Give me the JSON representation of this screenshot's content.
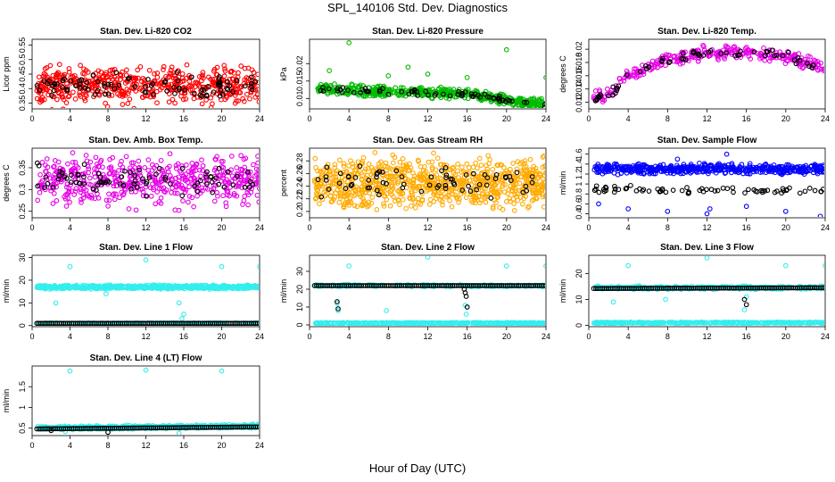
{
  "figure": {
    "title": "SPL_140106  Std. Dev. Diagnostics",
    "xlabel": "Hour of Day (UTC)"
  },
  "chart_data": [
    {
      "type": "scatter",
      "title": "Stan. Dev. Li-820 CO2",
      "ylabel": "Licor ppm",
      "xticks": [
        0,
        4,
        8,
        12,
        16,
        20,
        24
      ],
      "xlim": [
        0,
        24
      ],
      "yticks": [
        0.35,
        0.4,
        0.45,
        0.5,
        0.55
      ],
      "ylim": [
        0.33,
        0.57
      ],
      "series": [
        {
          "color": "#ff0000",
          "pattern": {
            "type": "noisy",
            "base": 0.41,
            "spread": 0.075,
            "n": 520,
            "seed": 11
          }
        },
        {
          "color": "#000000",
          "pattern": {
            "type": "noisy",
            "base": 0.41,
            "spread": 0.05,
            "n": 90,
            "seed": 12
          }
        }
      ]
    },
    {
      "type": "scatter",
      "title": "Stan. Dev. Li-820 Pressure",
      "ylabel": "kPa",
      "xticks": [
        0,
        4,
        8,
        12,
        16,
        20,
        24
      ],
      "xlim": [
        0,
        24
      ],
      "yticks": [
        0.01,
        0.015,
        0.02
      ],
      "ylim": [
        0.007,
        0.027
      ],
      "series": [
        {
          "color": "#00bb00",
          "pattern": {
            "type": "band",
            "levels": [
              [
                0,
                0.013
              ],
              [
                8,
                0.012
              ],
              [
                16,
                0.0115
              ],
              [
                20,
                0.0095
              ],
              [
                24,
                0.008
              ]
            ],
            "spread": 0.0018,
            "n": 500,
            "seed": 21
          }
        },
        {
          "color": "#00bb00",
          "pattern": {
            "type": "points",
            "x": [
              4,
              8,
              12,
              16,
              20,
              24,
              2,
              10
            ],
            "y": [
              0.026,
              0.0165,
              0.017,
              0.016,
              0.024,
              0.016,
              0.018,
              0.019
            ]
          }
        },
        {
          "color": "#000000",
          "pattern": {
            "type": "band",
            "levels": [
              [
                0,
                0.013
              ],
              [
                8,
                0.012
              ],
              [
                16,
                0.0112
              ],
              [
                20,
                0.0095
              ],
              [
                24,
                0.008
              ]
            ],
            "spread": 0.001,
            "n": 70,
            "seed": 22
          }
        }
      ]
    },
    {
      "type": "scatter",
      "title": "Stan. Dev. Li-820 Temp.",
      "ylabel": "degrees C",
      "xticks": [
        0,
        4,
        8,
        12,
        16,
        20,
        24
      ],
      "xlim": [
        0,
        24
      ],
      "yticks": [
        0.012,
        0.014,
        0.016,
        0.018,
        0.02
      ],
      "ylim": [
        0.011,
        0.0215
      ],
      "series": [
        {
          "color": "#e600e6",
          "pattern": {
            "type": "band",
            "levels": [
              [
                0,
                0.0128
              ],
              [
                2,
                0.013
              ],
              [
                4,
                0.016
              ],
              [
                8,
                0.0185
              ],
              [
                12,
                0.0195
              ],
              [
                16,
                0.0195
              ],
              [
                20,
                0.019
              ],
              [
                24,
                0.017
              ]
            ],
            "spread": 0.0012,
            "n": 300,
            "seed": 31
          }
        },
        {
          "color": "#000000",
          "pattern": {
            "type": "band",
            "levels": [
              [
                0,
                0.0128
              ],
              [
                2,
                0.013
              ],
              [
                4,
                0.016
              ],
              [
                8,
                0.0185
              ],
              [
                12,
                0.0195
              ],
              [
                16,
                0.0195
              ],
              [
                20,
                0.019
              ],
              [
                24,
                0.017
              ]
            ],
            "spread": 0.0008,
            "n": 60,
            "seed": 32
          }
        }
      ]
    },
    {
      "type": "scatter",
      "title": "Stan. Dev. Amb. Box Temp.",
      "ylabel": "degrees C",
      "xticks": [
        0,
        4,
        8,
        12,
        16,
        20,
        24
      ],
      "xlim": [
        0,
        24
      ],
      "yticks": [
        0.25,
        0.3,
        0.35
      ],
      "ylim": [
        0.235,
        0.395
      ],
      "series": [
        {
          "color": "#e600e6",
          "pattern": {
            "type": "noisy",
            "base": 0.32,
            "spread": 0.065,
            "n": 500,
            "seed": 41
          }
        },
        {
          "color": "#000000",
          "pattern": {
            "type": "noisy",
            "base": 0.32,
            "spread": 0.045,
            "n": 80,
            "seed": 42
          }
        }
      ]
    },
    {
      "type": "scatter",
      "title": "Stan. Dev. Gas Stream RH",
      "ylabel": "percent",
      "xticks": [
        0,
        4,
        8,
        12,
        16,
        20,
        24
      ],
      "xlim": [
        0,
        24
      ],
      "yticks": [
        0.2,
        0.22,
        0.24,
        0.26,
        0.28
      ],
      "ylim": [
        0.19,
        0.3
      ],
      "series": [
        {
          "color": "#ffaa00",
          "pattern": {
            "type": "noisy",
            "base": 0.245,
            "spread": 0.045,
            "n": 800,
            "seed": 51
          }
        },
        {
          "color": "#000000",
          "pattern": {
            "type": "noisy",
            "base": 0.245,
            "spread": 0.03,
            "n": 70,
            "seed": 52
          }
        }
      ]
    },
    {
      "type": "scatter",
      "title": "Stan. Dev. Sample Flow",
      "ylabel": "ml/min",
      "xticks": [
        0,
        4,
        8,
        12,
        16,
        20,
        24
      ],
      "xlim": [
        0,
        24
      ],
      "yticks": [
        0.4,
        0.6,
        0.8,
        1,
        1.2,
        1.4,
        1.6
      ],
      "ylim": [
        0.32,
        1.72
      ],
      "series": [
        {
          "color": "#0000ff",
          "pattern": {
            "type": "band",
            "levels": [
              [
                0,
                1.3
              ],
              [
                24,
                1.3
              ]
            ],
            "spread": 0.12,
            "n": 500,
            "seed": 61
          }
        },
        {
          "color": "#0000ff",
          "pattern": {
            "type": "points",
            "x": [
              1,
              4,
              8,
              12,
              12.3,
              16,
              20,
              23.5,
              9,
              14
            ],
            "y": [
              0.6,
              0.5,
              0.45,
              0.4,
              0.5,
              0.55,
              0.45,
              0.35,
              1.5,
              1.6
            ]
          }
        },
        {
          "color": "#000000",
          "pattern": {
            "type": "band",
            "levels": [
              [
                0,
                0.9
              ],
              [
                24,
                0.85
              ]
            ],
            "spread": 0.08,
            "n": 70,
            "seed": 62
          }
        }
      ]
    },
    {
      "type": "scatter",
      "title": "Stan. Dev. Line 1 Flow",
      "ylabel": "ml/min",
      "xticks": [
        0,
        4,
        8,
        12,
        16,
        20,
        24
      ],
      "xlim": [
        0,
        24
      ],
      "yticks": [
        0,
        10,
        20,
        30
      ],
      "ylim": [
        -0.5,
        31
      ],
      "series": [
        {
          "color": "#33eeee",
          "pattern": {
            "type": "band",
            "levels": [
              [
                0,
                17
              ],
              [
                24,
                17
              ]
            ],
            "spread": 1,
            "n": 500,
            "seed": 71
          }
        },
        {
          "color": "#33eeee",
          "pattern": {
            "type": "points",
            "x": [
              4,
              12,
              20,
              24,
              2.5,
              15.5,
              16,
              15.8,
              7.8
            ],
            "y": [
              26,
              29,
              26,
              26,
              10,
              10,
              5,
              3,
              14
            ]
          }
        },
        {
          "color": "#33eeee",
          "pattern": {
            "type": "band",
            "levels": [
              [
                0,
                1
              ],
              [
                24,
                1
              ]
            ],
            "spread": 0.2,
            "n": 200,
            "seed": 73
          }
        },
        {
          "color": "#000000",
          "pattern": {
            "type": "line",
            "levels": [
              [
                0,
                1
              ],
              [
                24,
                1
              ]
            ],
            "n": 110
          }
        }
      ]
    },
    {
      "type": "scatter",
      "title": "Stan. Dev. Line 2 Flow",
      "ylabel": "ml/min",
      "xticks": [
        0,
        4,
        8,
        12,
        16,
        20,
        24
      ],
      "xlim": [
        0,
        24
      ],
      "yticks": [
        0,
        10,
        20,
        30
      ],
      "ylim": [
        -1,
        39
      ],
      "series": [
        {
          "color": "#33eeee",
          "pattern": {
            "type": "band",
            "levels": [
              [
                0,
                22
              ],
              [
                24,
                22
              ]
            ],
            "spread": 0.7,
            "n": 220,
            "seed": 81
          }
        },
        {
          "color": "#33eeee",
          "pattern": {
            "type": "band",
            "levels": [
              [
                0,
                1
              ],
              [
                24,
                1
              ]
            ],
            "spread": 0.4,
            "n": 400,
            "seed": 82
          }
        },
        {
          "color": "#33eeee",
          "pattern": {
            "type": "points",
            "x": [
              4,
              12,
              20,
              24,
              2.8,
              2.9,
              15.8,
              16,
              15.9,
              7.8
            ],
            "y": [
              33,
              38,
              33,
              33,
              12,
              8,
              11,
              10,
              6,
              8
            ]
          }
        },
        {
          "color": "#000000",
          "pattern": {
            "type": "line",
            "levels": [
              [
                0,
                22
              ],
              [
                24,
                22
              ]
            ],
            "n": 110
          }
        },
        {
          "color": "#000000",
          "pattern": {
            "type": "points",
            "x": [
              2.8,
              2.9,
              15.8,
              15.9,
              16,
              15.7
            ],
            "y": [
              13,
              9,
              18,
              16,
              10,
              20
            ]
          }
        }
      ]
    },
    {
      "type": "scatter",
      "title": "Stan. Dev. Line 3 Flow",
      "ylabel": "ml/min",
      "xticks": [
        0,
        4,
        8,
        12,
        16,
        20,
        24
      ],
      "xlim": [
        0,
        24
      ],
      "yticks": [
        0,
        10,
        20
      ],
      "ylim": [
        -0.5,
        27
      ],
      "series": [
        {
          "color": "#33eeee",
          "pattern": {
            "type": "band",
            "levels": [
              [
                0,
                14.5
              ],
              [
                24,
                14.5
              ]
            ],
            "spread": 0.8,
            "n": 250,
            "seed": 91
          }
        },
        {
          "color": "#33eeee",
          "pattern": {
            "type": "band",
            "levels": [
              [
                0,
                1
              ],
              [
                24,
                1
              ]
            ],
            "spread": 0.3,
            "n": 400,
            "seed": 92
          }
        },
        {
          "color": "#33eeee",
          "pattern": {
            "type": "points",
            "x": [
              4,
              12,
              20,
              24,
              2.5,
              15.8,
              16,
              7.8
            ],
            "y": [
              23,
              26,
              23,
              23,
              9,
              6,
              11,
              10
            ]
          }
        },
        {
          "color": "#000000",
          "pattern": {
            "type": "line",
            "levels": [
              [
                0,
                14.2
              ],
              [
                24,
                14.5
              ]
            ],
            "n": 110
          }
        },
        {
          "color": "#000000",
          "pattern": {
            "type": "points",
            "x": [
              15.8,
              16
            ],
            "y": [
              10,
              8
            ]
          }
        }
      ]
    },
    {
      "type": "scatter",
      "title": "Stan. Dev. Line 4 (LT) Flow",
      "ylabel": "ml/min",
      "xticks": [
        0,
        4,
        8,
        12,
        16,
        20,
        24
      ],
      "xlim": [
        0,
        24
      ],
      "yticks": [
        0.5,
        1,
        1.5
      ],
      "ylim": [
        0.32,
        2.0
      ],
      "series": [
        {
          "color": "#33eeee",
          "pattern": {
            "type": "band",
            "levels": [
              [
                0,
                0.5
              ],
              [
                24,
                0.55
              ]
            ],
            "spread": 0.05,
            "n": 500,
            "seed": 101
          }
        },
        {
          "color": "#33eeee",
          "pattern": {
            "type": "points",
            "x": [
              4,
              12,
              20,
              15.5,
              3.5
            ],
            "y": [
              1.88,
              1.9,
              1.88,
              0.38,
              0.42
            ]
          }
        },
        {
          "color": "#000000",
          "pattern": {
            "type": "line",
            "levels": [
              [
                0,
                0.48
              ],
              [
                24,
                0.53
              ]
            ],
            "n": 110
          }
        },
        {
          "color": "#000000",
          "pattern": {
            "type": "points",
            "x": [
              8,
              2
            ],
            "y": [
              0.4,
              0.44
            ]
          }
        }
      ]
    }
  ]
}
